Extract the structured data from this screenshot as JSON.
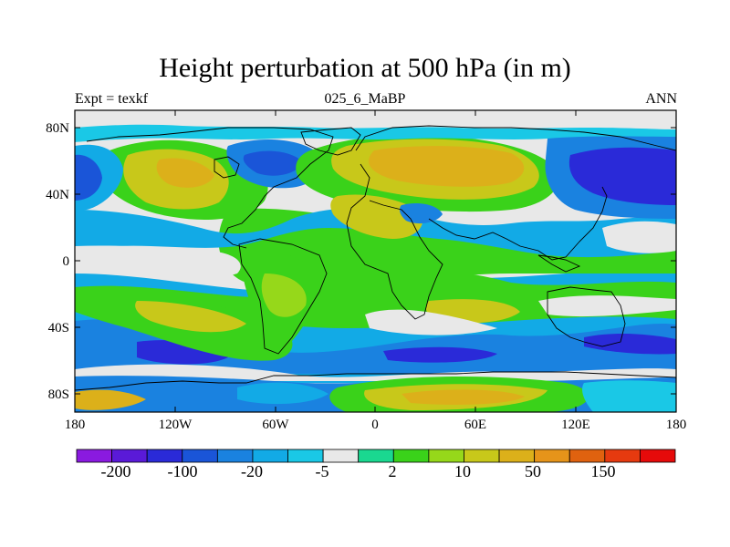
{
  "title": "Height perturbation at 500 hPa (in m)",
  "left_label": "Expt = texkf",
  "center_label": "025_6_MaBP",
  "right_label": "ANN",
  "x_tick_labels": [
    "180",
    "120W",
    "60W",
    "0",
    "60E",
    "120E",
    "180"
  ],
  "y_tick_labels": [
    "80N",
    "40N",
    "0",
    "40S",
    "80S"
  ],
  "colorbar": {
    "colors": [
      "#8a1ae0",
      "#5a1ad8",
      "#2a2ad8",
      "#1a55d8",
      "#1a82e0",
      "#12aae6",
      "#1ac8e6",
      "#e8e8e8",
      "#1ad890",
      "#3ad21a",
      "#96d81a",
      "#c8c81a",
      "#dcb01a",
      "#e6941a",
      "#e0620f",
      "#e63a0f",
      "#e60a0a"
    ],
    "labels": [
      "-200",
      "-100",
      "-20",
      "-5",
      "2",
      "10",
      "50",
      "150"
    ]
  },
  "map_colors": {
    "ocean_neutral": "#e8e8e8",
    "light_blue": "#12aae6",
    "blue": "#1a82e0",
    "dark_blue": "#2a2ad8",
    "navy": "#1a55d8",
    "cyan": "#1ac8e6",
    "teal": "#1ad890",
    "green": "#3ad21a",
    "yellow_green": "#96d81a",
    "olive": "#c8c81a",
    "gold": "#dcb01a",
    "orange": "#e6941a"
  }
}
